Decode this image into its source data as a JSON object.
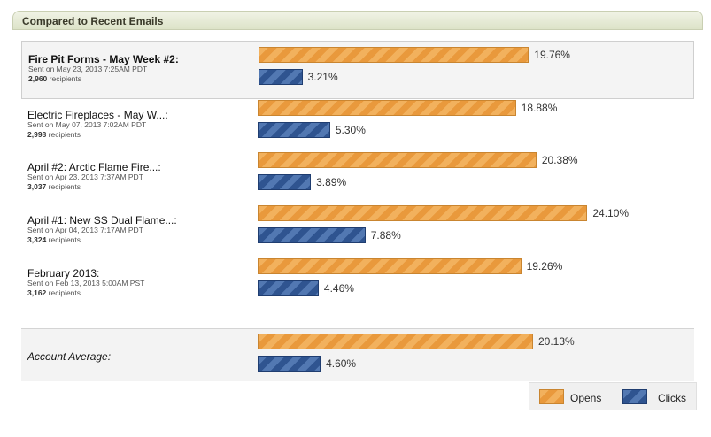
{
  "panel": {
    "title": "Compared to Recent Emails"
  },
  "chart_data": {
    "type": "bar",
    "orientation": "horizontal",
    "series_names": [
      "Opens",
      "Clicks"
    ],
    "emails": [
      {
        "title": "Fire Pit Forms - May Week #2:",
        "sent": "Sent on May 23, 2013 7:25AM PDT",
        "recipients_count": "2,960",
        "recipients_word": "recipients",
        "opens": 19.76,
        "clicks": 3.21,
        "opens_label": "19.76%",
        "clicks_label": "3.21%",
        "highlight": true,
        "bold": true
      },
      {
        "title": "Electric Fireplaces - May W...:",
        "sent": "Sent on May 07, 2013 7:02AM PDT",
        "recipients_count": "2,998",
        "recipients_word": "recipients",
        "opens": 18.88,
        "clicks": 5.3,
        "opens_label": "18.88%",
        "clicks_label": "5.30%"
      },
      {
        "title": "April #2: Arctic Flame Fire...:",
        "sent": "Sent on Apr 23, 2013 7:37AM PDT",
        "recipients_count": "3,037",
        "recipients_word": "recipients",
        "opens": 20.38,
        "clicks": 3.89,
        "opens_label": "20.38%",
        "clicks_label": "3.89%"
      },
      {
        "title": "April #1: New SS Dual Flame...:",
        "sent": "Sent on Apr 04, 2013 7:17AM PDT",
        "recipients_count": "3,324",
        "recipients_word": "recipients",
        "opens": 24.1,
        "clicks": 7.88,
        "opens_label": "24.10%",
        "clicks_label": "7.88%"
      },
      {
        "title": "February 2013:",
        "sent": "Sent on Feb 13, 2013 5:00AM PST",
        "recipients_count": "3,162",
        "recipients_word": "recipients",
        "opens": 19.26,
        "clicks": 4.46,
        "opens_label": "19.26%",
        "clicks_label": "4.46%"
      }
    ],
    "average": {
      "title": "Account Average:",
      "opens": 20.13,
      "clicks": 4.6,
      "opens_label": "20.13%",
      "clicks_label": "4.60%"
    }
  },
  "legend": {
    "opens": "Opens",
    "clicks": "Clicks"
  },
  "colors": {
    "opens": "#f2b15d",
    "clicks": "#3d63a0"
  }
}
